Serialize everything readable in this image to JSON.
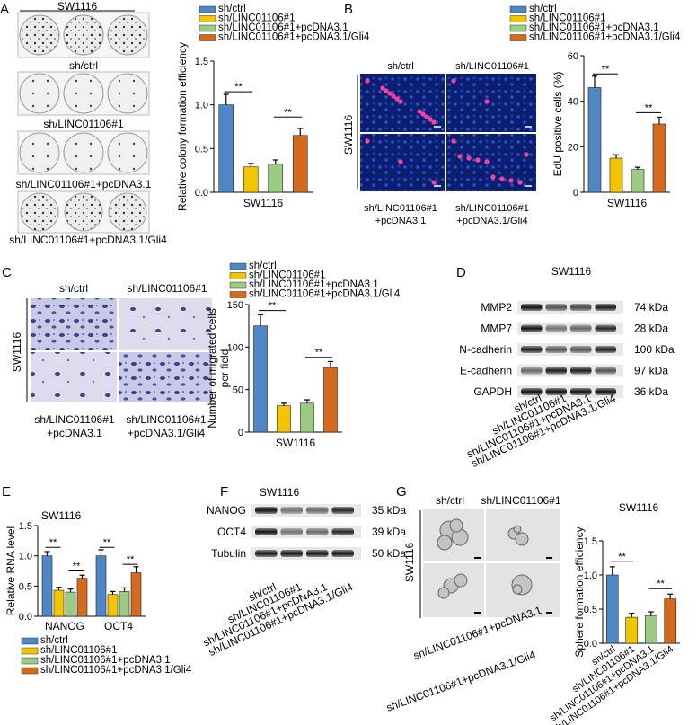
{
  "colors": {
    "ctrl": "#4f86c6",
    "sh": "#f5c400",
    "pc": "#9ccc84",
    "gli4": "#d46a1e"
  },
  "legend": [
    "sh/ctrl",
    "sh/LINC01106#1",
    "sh/LINC01106#1+pcDNA3.1",
    "sh/LINC01106#1+pcDNA3.1/Gli4"
  ],
  "sig": "**",
  "panelA": {
    "letter": "A",
    "plate_labels": [
      "SW1116",
      "sh/ctrl",
      "sh/LINC01106#1",
      "sh/LINC01106#1+pcDNA3.1",
      "sh/LINC01106#1+pcDNA3.1/Gli4"
    ],
    "chart": {
      "ylabel": "Relative colony formation efficiency",
      "xlabel": "SW1116",
      "ticks": [
        "0.0",
        "0.5",
        "1.0",
        "1.5"
      ]
    }
  },
  "panelB": {
    "letter": "B",
    "top_labels": [
      "sh/ctrl",
      "sh/LINC01106#1"
    ],
    "side_label": "SW1116",
    "bottom_labels": [
      "sh/LINC01106#1",
      "+pcDNA3.1",
      "sh/LINC01106#1",
      "+pcDNA3.1/Gli4"
    ],
    "chart": {
      "ylabel": "EdU positive cells (%)",
      "xlabel": "SW1116",
      "ticks": [
        "0",
        "20",
        "40",
        "60"
      ]
    }
  },
  "panelC": {
    "letter": "C",
    "top_labels": [
      "sh/ctrl",
      "sh/LINC01106#1"
    ],
    "side_label": "SW1116",
    "bottom_labels": [
      "sh/LINC01106#1",
      "+pcDNA3.1",
      "sh/LINC01106#1",
      "+pcDNA3.1/Gli4"
    ],
    "chart": {
      "ylabel1": "Number of migrated cells",
      "ylabel2": "per field",
      "xlabel": "SW1116",
      "ticks": [
        "0",
        "50",
        "100",
        "150"
      ]
    }
  },
  "panelD": {
    "letter": "D",
    "title": "SW1116",
    "proteins": [
      "MMP2",
      "MMP7",
      "N-cadherin",
      "E-cadherin",
      "GAPDH"
    ],
    "sizes": [
      "74 kDa",
      "28 kDa",
      "100 kDa",
      "97 kDa",
      "36 kDa"
    ]
  },
  "panelE": {
    "letter": "E",
    "title": "SW1116",
    "chart": {
      "ylabel": "Relative RNA level",
      "ticks": [
        "0.0",
        "0.5",
        "1.0",
        "1.5"
      ]
    }
  },
  "panelF": {
    "letter": "F",
    "title": "SW1116",
    "proteins": [
      "NANOG",
      "OCT4",
      "Tubulin"
    ],
    "sizes": [
      "35 kDa",
      "39 kDa",
      "50 kDa"
    ]
  },
  "panelG": {
    "letter": "G",
    "top_labels": [
      "sh/ctrl",
      "sh/LINC01106#1"
    ],
    "side_label": "SW1116",
    "chart": {
      "title": "SW1116",
      "ylabel": "Sphere formation efficiency",
      "ticks": [
        "0.0",
        "0.5",
        "1.0",
        "1.5"
      ]
    }
  },
  "chart_data": [
    {
      "type": "bar",
      "panel": "A",
      "categories": [
        "sh/ctrl",
        "sh/LINC01106#1",
        "sh/LINC01106#1+pcDNA3.1",
        "sh/LINC01106#1+pcDNA3.1/Gli4"
      ],
      "values": [
        1.0,
        0.29,
        0.32,
        0.65
      ],
      "errors": [
        0.12,
        0.04,
        0.05,
        0.08
      ],
      "ylim": [
        0,
        1.5
      ],
      "ylabel": "Relative colony formation efficiency",
      "xlabel": "SW1116"
    },
    {
      "type": "bar",
      "panel": "B",
      "categories": [
        "sh/ctrl",
        "sh/LINC01106#1",
        "sh/LINC01106#1+pcDNA3.1",
        "sh/LINC01106#1+pcDNA3.1/Gli4"
      ],
      "values": [
        46,
        15,
        10,
        30
      ],
      "errors": [
        5,
        1.5,
        1,
        3
      ],
      "ylim": [
        0,
        60
      ],
      "ylabel": "EdU positive cells (%)",
      "xlabel": "SW1116"
    },
    {
      "type": "bar",
      "panel": "C",
      "categories": [
        "sh/ctrl",
        "sh/LINC01106#1",
        "sh/LINC01106#1+pcDNA3.1",
        "sh/LINC01106#1+pcDNA3.1/Gli4"
      ],
      "values": [
        125,
        31,
        34,
        76
      ],
      "errors": [
        13,
        3,
        4,
        7
      ],
      "ylim": [
        0,
        150
      ],
      "ylabel": "Number of migrated cells per field",
      "xlabel": "SW1116"
    },
    {
      "type": "bar",
      "panel": "E",
      "categories": [
        "NANOG",
        "OCT4"
      ],
      "series": [
        {
          "name": "sh/ctrl",
          "values": [
            1.0,
            1.0
          ],
          "errors": [
            0.07,
            0.1
          ]
        },
        {
          "name": "sh/LINC01106#1",
          "values": [
            0.43,
            0.36
          ],
          "errors": [
            0.05,
            0.05
          ]
        },
        {
          "name": "sh/LINC01106#1+pcDNA3.1",
          "values": [
            0.4,
            0.41
          ],
          "errors": [
            0.05,
            0.06
          ]
        },
        {
          "name": "sh/LINC01106#1+pcDNA3.1/Gli4",
          "values": [
            0.63,
            0.72
          ],
          "errors": [
            0.05,
            0.1
          ]
        }
      ],
      "ylim": [
        0,
        1.5
      ],
      "ylabel": "Relative RNA level"
    },
    {
      "type": "bar",
      "panel": "G",
      "categories": [
        "sh/ctrl",
        "sh/LINC01106#1",
        "sh/LINC01106#1+pcDNA3.1",
        "sh/LINC01106#1+pcDNA3.1/Gli4"
      ],
      "values": [
        1.0,
        0.38,
        0.4,
        0.65
      ],
      "errors": [
        0.12,
        0.06,
        0.06,
        0.07
      ],
      "ylim": [
        0,
        1.5
      ],
      "ylabel": "Sphere formation efficiency",
      "title": "SW1116"
    }
  ]
}
